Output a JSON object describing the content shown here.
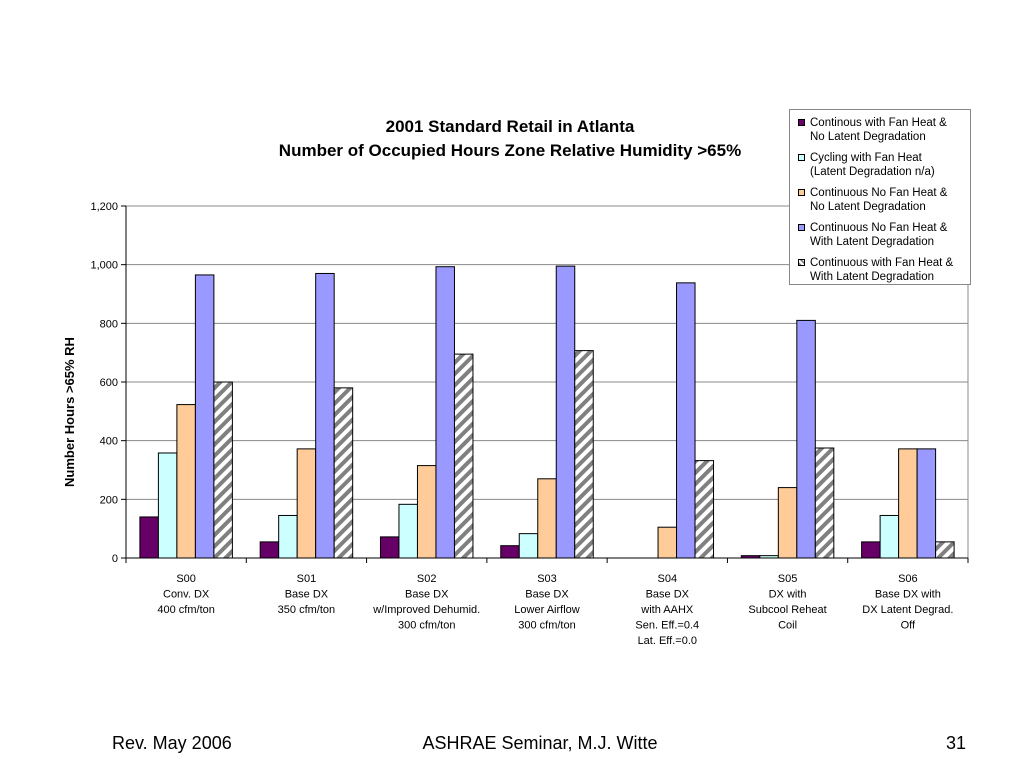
{
  "chart_data": {
    "type": "bar",
    "title": "2001 Standard Retail in Atlanta",
    "subtitle": "Number of Occupied Hours Zone Relative Humidity >65%",
    "xlabel": "",
    "ylabel": "Number Hours >65% RH",
    "ylim": [
      0,
      1200
    ],
    "yticks": [
      "0",
      "200",
      "400",
      "600",
      "800",
      "1,000",
      "1,200"
    ],
    "grid": true,
    "legend_position": "top-right",
    "categories": [
      [
        "S00",
        "Conv. DX",
        "400 cfm/ton"
      ],
      [
        "S01",
        "Base DX",
        "350 cfm/ton"
      ],
      [
        "S02",
        "Base DX",
        "w/Improved Dehumid.",
        "300 cfm/ton"
      ],
      [
        "S03",
        "Base DX",
        "Lower Airflow",
        "300 cfm/ton"
      ],
      [
        "S04",
        "Base DX",
        "with AAHX",
        "Sen. Eff.=0.4",
        "Lat. Eff.=0.0"
      ],
      [
        "S05",
        "DX with",
        "Subcool Reheat",
        "Coil"
      ],
      [
        "S06",
        "Base DX with",
        "DX Latent Degrad.",
        "Off"
      ]
    ],
    "series": [
      {
        "name": "Continous with Fan Heat &\nNo Latent Degradation",
        "color": "#660066",
        "pattern": "solid",
        "values": [
          140,
          55,
          72,
          42,
          0,
          8,
          55
        ]
      },
      {
        "name": "Cycling with Fan Heat\n(Latent Degradation n/a)",
        "color": "#ccffff",
        "pattern": "solid",
        "values": [
          358,
          145,
          183,
          83,
          0,
          8,
          145
        ]
      },
      {
        "name": "Continuous No Fan Heat &\nNo Latent Degradation",
        "color": "#ffcc99",
        "pattern": "solid",
        "values": [
          523,
          372,
          315,
          270,
          105,
          240,
          372
        ]
      },
      {
        "name": "Continuous No Fan Heat &\nWith Latent Degradation",
        "color": "#9999ff",
        "pattern": "solid",
        "values": [
          965,
          970,
          993,
          995,
          938,
          810,
          372
        ]
      },
      {
        "name": "Continuous with Fan Heat &\nWith Latent Degradation",
        "color": "#808080",
        "pattern": "diagonal-stripes",
        "values": [
          600,
          580,
          695,
          707,
          332,
          375,
          55
        ]
      }
    ]
  },
  "footer": {
    "left": "Rev. May 2006",
    "center": "ASHRAE Seminar, M.J. Witte",
    "right": "31"
  }
}
